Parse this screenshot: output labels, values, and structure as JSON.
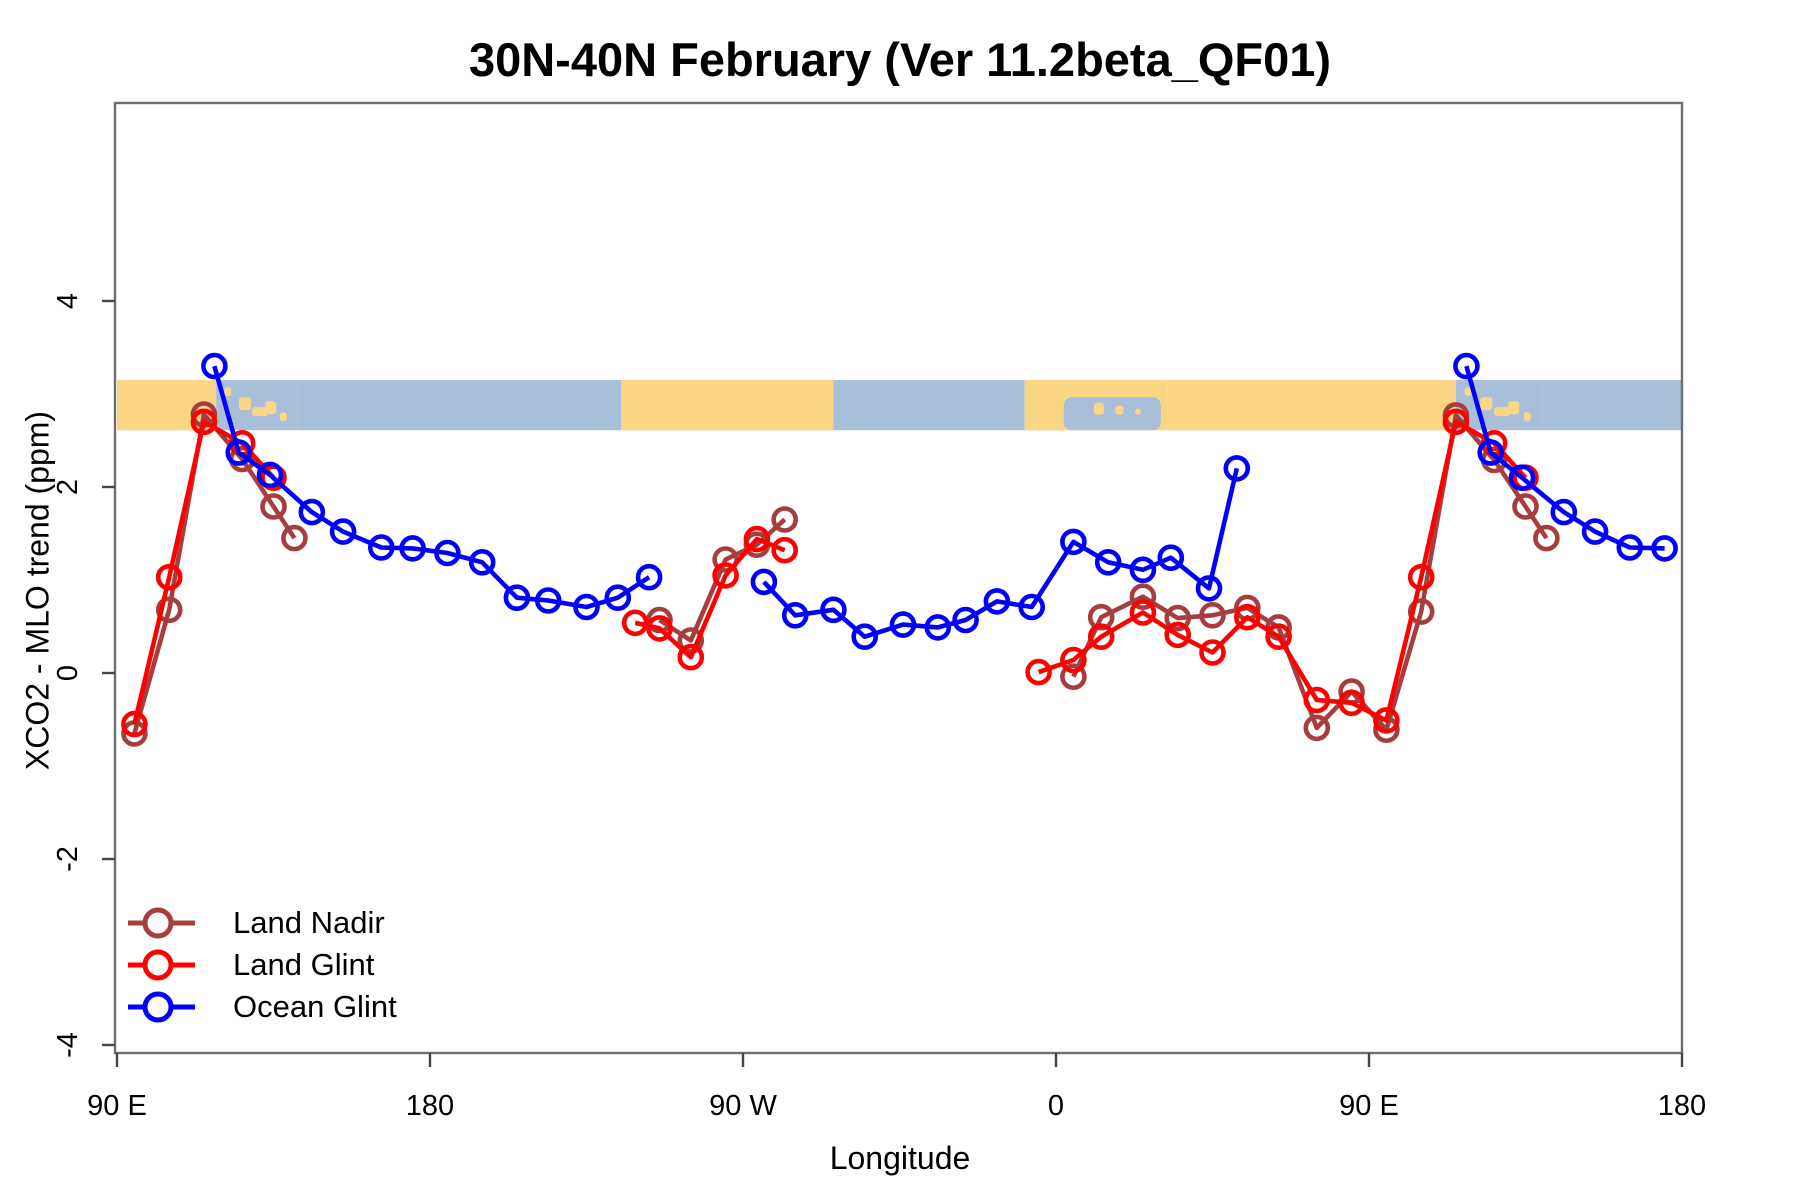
{
  "title": "30N-40N February (Ver 11.2beta_QF01)",
  "chart_data": {
    "type": "line",
    "title": "30N-40N February (Ver 11.2beta_QF01)",
    "xlabel": "Longitude",
    "ylabel": "XCO2 - MLO trend (ppm)",
    "x_axis": {
      "ticks": [
        {
          "lon": 90,
          "label": "90 E"
        },
        {
          "lon": 180,
          "label": "180"
        },
        {
          "lon": 270,
          "label": "90 W"
        },
        {
          "lon": 360,
          "label": "0"
        },
        {
          "lon": 450,
          "label": "90 E"
        },
        {
          "lon": 540,
          "label": "180"
        }
      ],
      "note": "longitude axis wraps eastward from 90E through 180, 90W, 0 back to 90E and 180"
    },
    "y_axis": {
      "ticks": [
        -4,
        -2,
        0,
        2,
        4
      ],
      "range": [
        -4.35,
        6.1
      ],
      "grid": false
    },
    "map_band": {
      "value_top": 3.15,
      "value_bottom": 2.61,
      "ocean_color": "#A9BFD9",
      "land_color": "#FAD584",
      "segments": [
        {
          "from": 90,
          "to": 118.5,
          "type": "land"
        },
        {
          "from": 118.5,
          "to": 142,
          "type": "islands"
        },
        {
          "from": 142,
          "to": 235,
          "type": "ocean"
        },
        {
          "from": 235,
          "to": 296,
          "type": "land"
        },
        {
          "from": 296,
          "to": 351,
          "type": "ocean"
        },
        {
          "from": 351,
          "to": 361,
          "type": "land"
        },
        {
          "from": 361,
          "to": 392,
          "type": "mixed"
        },
        {
          "from": 392,
          "to": 475,
          "type": "land"
        },
        {
          "from": 475,
          "to": 500,
          "type": "islands"
        },
        {
          "from": 500,
          "to": 540,
          "type": "ocean"
        }
      ]
    },
    "legend": {
      "position": "bottom-left",
      "items": [
        "Land Nadir",
        "Land Glint",
        "Ocean Glint"
      ]
    },
    "series": [
      {
        "name": "Land Nadir",
        "color": "#A63E3E",
        "segments": [
          [
            [
              95,
              -0.65
            ],
            [
              105,
              0.68
            ],
            [
              115,
              2.78
            ],
            [
              126,
              2.3
            ],
            [
              135,
              1.79
            ],
            [
              141,
              1.45
            ]
          ],
          [
            [
              246,
              0.57
            ],
            [
              255,
              0.35
            ],
            [
              265,
              1.22
            ],
            [
              274,
              1.38
            ],
            [
              282,
              1.65
            ]
          ],
          [
            [
              365,
              -0.04
            ],
            [
              373,
              0.6
            ],
            [
              385,
              0.82
            ],
            [
              395,
              0.59
            ],
            [
              405,
              0.62
            ],
            [
              415,
              0.7
            ],
            [
              424,
              0.49
            ],
            [
              435,
              -0.59
            ],
            [
              445,
              -0.2
            ],
            [
              455,
              -0.61
            ],
            [
              465,
              0.66
            ],
            [
              475,
              2.77
            ],
            [
              486,
              2.29
            ],
            [
              495,
              1.79
            ],
            [
              501,
              1.45
            ]
          ]
        ]
      },
      {
        "name": "Land Glint",
        "color": "#FF0000",
        "segments": [
          [
            [
              95,
              -0.55
            ],
            [
              105,
              1.03
            ],
            [
              115,
              2.7
            ],
            [
              126,
              2.47
            ],
            [
              135,
              2.1
            ]
          ],
          [
            [
              239,
              0.54
            ],
            [
              246,
              0.48
            ],
            [
              255,
              0.17
            ],
            [
              265,
              1.05
            ],
            [
              274,
              1.44
            ],
            [
              282,
              1.32
            ]
          ],
          [
            [
              355,
              0.01
            ],
            [
              365,
              0.14
            ],
            [
              373,
              0.39
            ],
            [
              385,
              0.65
            ],
            [
              395,
              0.41
            ],
            [
              405,
              0.22
            ],
            [
              415,
              0.6
            ],
            [
              424,
              0.39
            ],
            [
              435,
              -0.29
            ],
            [
              445,
              -0.32
            ],
            [
              455,
              -0.51
            ],
            [
              465,
              1.03
            ],
            [
              475,
              2.7
            ],
            [
              486,
              2.47
            ],
            [
              495,
              2.1
            ]
          ]
        ]
      },
      {
        "name": "Ocean Glint",
        "color": "#0000FF",
        "segments": [
          [
            [
              118,
              3.3
            ],
            [
              125,
              2.37
            ],
            [
              134,
              2.13
            ],
            [
              146,
              1.73
            ],
            [
              155,
              1.52
            ],
            [
              166,
              1.35
            ],
            [
              175,
              1.34
            ],
            [
              185,
              1.29
            ],
            [
              195,
              1.19
            ],
            [
              205,
              0.81
            ],
            [
              214,
              0.78
            ],
            [
              225,
              0.71
            ],
            [
              234,
              0.81
            ],
            [
              243,
              1.03
            ]
          ],
          [
            [
              276,
              0.98
            ],
            [
              285,
              0.62
            ],
            [
              296,
              0.68
            ],
            [
              305,
              0.39
            ],
            [
              316,
              0.52
            ],
            [
              326,
              0.49
            ],
            [
              334,
              0.57
            ],
            [
              343,
              0.77
            ],
            [
              353,
              0.71
            ],
            [
              365,
              1.41
            ],
            [
              375,
              1.19
            ],
            [
              385,
              1.11
            ],
            [
              393,
              1.24
            ],
            [
              404,
              0.91
            ],
            [
              412,
              2.2
            ]
          ],
          [
            [
              478,
              3.3
            ],
            [
              485,
              2.37
            ],
            [
              494,
              2.1
            ],
            [
              506,
              1.73
            ],
            [
              515,
              1.52
            ],
            [
              525,
              1.35
            ],
            [
              535,
              1.34
            ]
          ]
        ]
      }
    ]
  }
}
